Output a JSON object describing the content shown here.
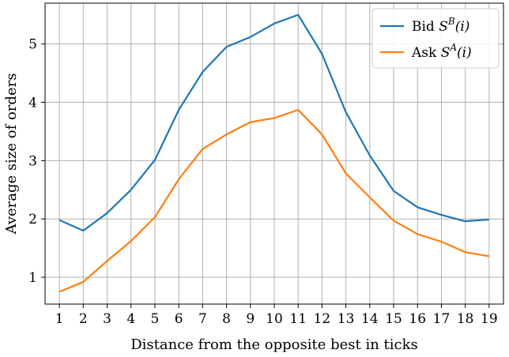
{
  "chart_data": {
    "type": "line",
    "x": [
      1,
      2,
      3,
      4,
      5,
      6,
      7,
      8,
      9,
      10,
      11,
      12,
      13,
      14,
      15,
      16,
      17,
      18,
      19
    ],
    "series": [
      {
        "name": "Bid S^B(i)",
        "legend_prefix": "Bid",
        "legend_math": {
          "base": "S",
          "sup": "B",
          "arg": "(i)"
        },
        "color": "#1f77b4",
        "values": [
          1.98,
          1.8,
          2.1,
          2.5,
          3.01,
          3.87,
          4.52,
          4.95,
          5.12,
          5.35,
          5.5,
          4.83,
          3.83,
          3.09,
          2.48,
          2.2,
          2.07,
          1.96,
          1.99
        ]
      },
      {
        "name": "Ask S^A(i)",
        "legend_prefix": "Ask",
        "legend_math": {
          "base": "S",
          "sup": "A",
          "arg": "(i)"
        },
        "color": "#ff7f0e",
        "values": [
          0.75,
          0.92,
          1.28,
          1.62,
          2.03,
          2.68,
          3.2,
          3.45,
          3.66,
          3.73,
          3.87,
          3.45,
          2.78,
          2.37,
          1.97,
          1.74,
          1.61,
          1.43,
          1.36
        ]
      }
    ],
    "xlabel": "Distance from the opposite best in ticks",
    "ylabel": "Average size of orders",
    "xlim": [
      0.4,
      19.6
    ],
    "ylim": [
      0.54,
      5.7
    ],
    "xticks": [
      1,
      2,
      3,
      4,
      5,
      6,
      7,
      8,
      9,
      10,
      11,
      12,
      13,
      14,
      15,
      16,
      17,
      18,
      19
    ],
    "yticks": [
      1,
      2,
      3,
      4,
      5
    ],
    "grid": true,
    "legend_position": "top-right"
  }
}
